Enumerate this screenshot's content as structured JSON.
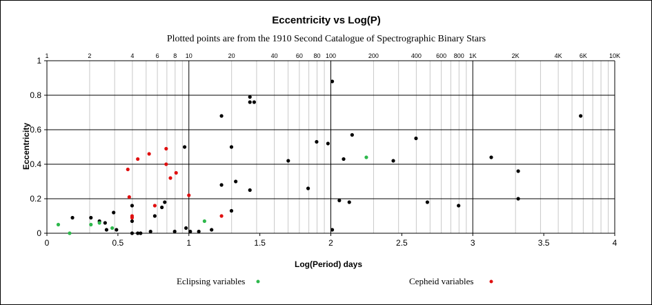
{
  "chart_data": {
    "type": "scatter",
    "title": "Eccentricity vs Log(P)",
    "subtitle": "Plotted points are from the 1910 Second Catalogue of Spectrographic Binary Stars",
    "xlabel": "Log(Period) days",
    "ylabel": "Eccentricity",
    "xlim": [
      0,
      4
    ],
    "ylim": [
      0,
      1
    ],
    "x_ticks": [
      "0",
      "0.5",
      "1",
      "1.5",
      "2",
      "2.5",
      "3",
      "3.5",
      "4"
    ],
    "y_ticks": [
      "0",
      "0.2",
      "0.4",
      "0.6",
      "0.8",
      "1"
    ],
    "top_axis_labels": [
      {
        "label": "1",
        "period": 1
      },
      {
        "label": "2",
        "period": 2
      },
      {
        "label": "4",
        "period": 4
      },
      {
        "label": "6",
        "period": 6
      },
      {
        "label": "8",
        "period": 8
      },
      {
        "label": "10",
        "period": 10
      },
      {
        "label": "20",
        "period": 20
      },
      {
        "label": "40",
        "period": 40
      },
      {
        "label": "60",
        "period": 60
      },
      {
        "label": "80",
        "period": 80
      },
      {
        "label": "100",
        "period": 100
      },
      {
        "label": "200",
        "period": 200
      },
      {
        "label": "400",
        "period": 400
      },
      {
        "label": "600",
        "period": 600
      },
      {
        "label": "800",
        "period": 800
      },
      {
        "label": "1K",
        "period": 1000
      },
      {
        "label": "2K",
        "period": 2000
      },
      {
        "label": "4K",
        "period": 4000
      },
      {
        "label": "6K",
        "period": 6000
      },
      {
        "label": "10K",
        "period": 10000
      }
    ],
    "grid": true,
    "legend_position": "bottom",
    "series": [
      {
        "color": "#000000",
        "points": [
          [
            0.18,
            0.09
          ],
          [
            0.31,
            0.09
          ],
          [
            0.37,
            0.07
          ],
          [
            0.41,
            0.06
          ],
          [
            0.42,
            0.02
          ],
          [
            0.47,
            0.12
          ],
          [
            0.49,
            0.02
          ],
          [
            0.6,
            0.16
          ],
          [
            0.6,
            0.07
          ],
          [
            0.6,
            0.0
          ],
          [
            0.64,
            0.0
          ],
          [
            0.66,
            0.0
          ],
          [
            0.73,
            0.01
          ],
          [
            0.76,
            0.1
          ],
          [
            0.81,
            0.15
          ],
          [
            0.83,
            0.18
          ],
          [
            0.9,
            0.01
          ],
          [
            0.97,
            0.5
          ],
          [
            0.98,
            0.03
          ],
          [
            1.01,
            0.01
          ],
          [
            1.07,
            0.01
          ],
          [
            1.16,
            0.02
          ],
          [
            1.23,
            0.68
          ],
          [
            1.23,
            0.28
          ],
          [
            1.3,
            0.5
          ],
          [
            1.3,
            0.13
          ],
          [
            1.33,
            0.3
          ],
          [
            1.43,
            0.79
          ],
          [
            1.43,
            0.76
          ],
          [
            1.46,
            0.76
          ],
          [
            1.43,
            0.25
          ],
          [
            1.7,
            0.42
          ],
          [
            1.84,
            0.26
          ],
          [
            1.9,
            0.53
          ],
          [
            1.98,
            0.52
          ],
          [
            2.06,
            0.19
          ],
          [
            2.09,
            0.43
          ],
          [
            2.13,
            0.18
          ],
          [
            2.01,
            0.88
          ],
          [
            2.01,
            0.02
          ],
          [
            2.15,
            0.57
          ],
          [
            2.44,
            0.42
          ],
          [
            2.6,
            0.55
          ],
          [
            2.68,
            0.18
          ],
          [
            2.9,
            0.16
          ],
          [
            3.13,
            0.44
          ],
          [
            3.32,
            0.36
          ],
          [
            3.32,
            0.2
          ],
          [
            3.76,
            0.68
          ]
        ]
      },
      {
        "name": "Eclipsing variables",
        "color": "#2eb84c",
        "points": [
          [
            0.08,
            0.05
          ],
          [
            0.16,
            0.0
          ],
          [
            0.31,
            0.05
          ],
          [
            0.37,
            0.06
          ],
          [
            0.46,
            0.03
          ],
          [
            1.11,
            0.07
          ],
          [
            2.25,
            0.44
          ]
        ]
      },
      {
        "name": "Cepheid variables",
        "color": "#e01010",
        "points": [
          [
            0.57,
            0.37
          ],
          [
            0.58,
            0.21
          ],
          [
            0.6,
            0.1
          ],
          [
            0.6,
            0.09
          ],
          [
            0.64,
            0.43
          ],
          [
            0.72,
            0.46
          ],
          [
            0.76,
            0.16
          ],
          [
            0.84,
            0.49
          ],
          [
            0.84,
            0.4
          ],
          [
            0.87,
            0.32
          ],
          [
            0.91,
            0.35
          ],
          [
            1.0,
            0.22
          ],
          [
            1.23,
            0.1
          ]
        ]
      }
    ]
  }
}
